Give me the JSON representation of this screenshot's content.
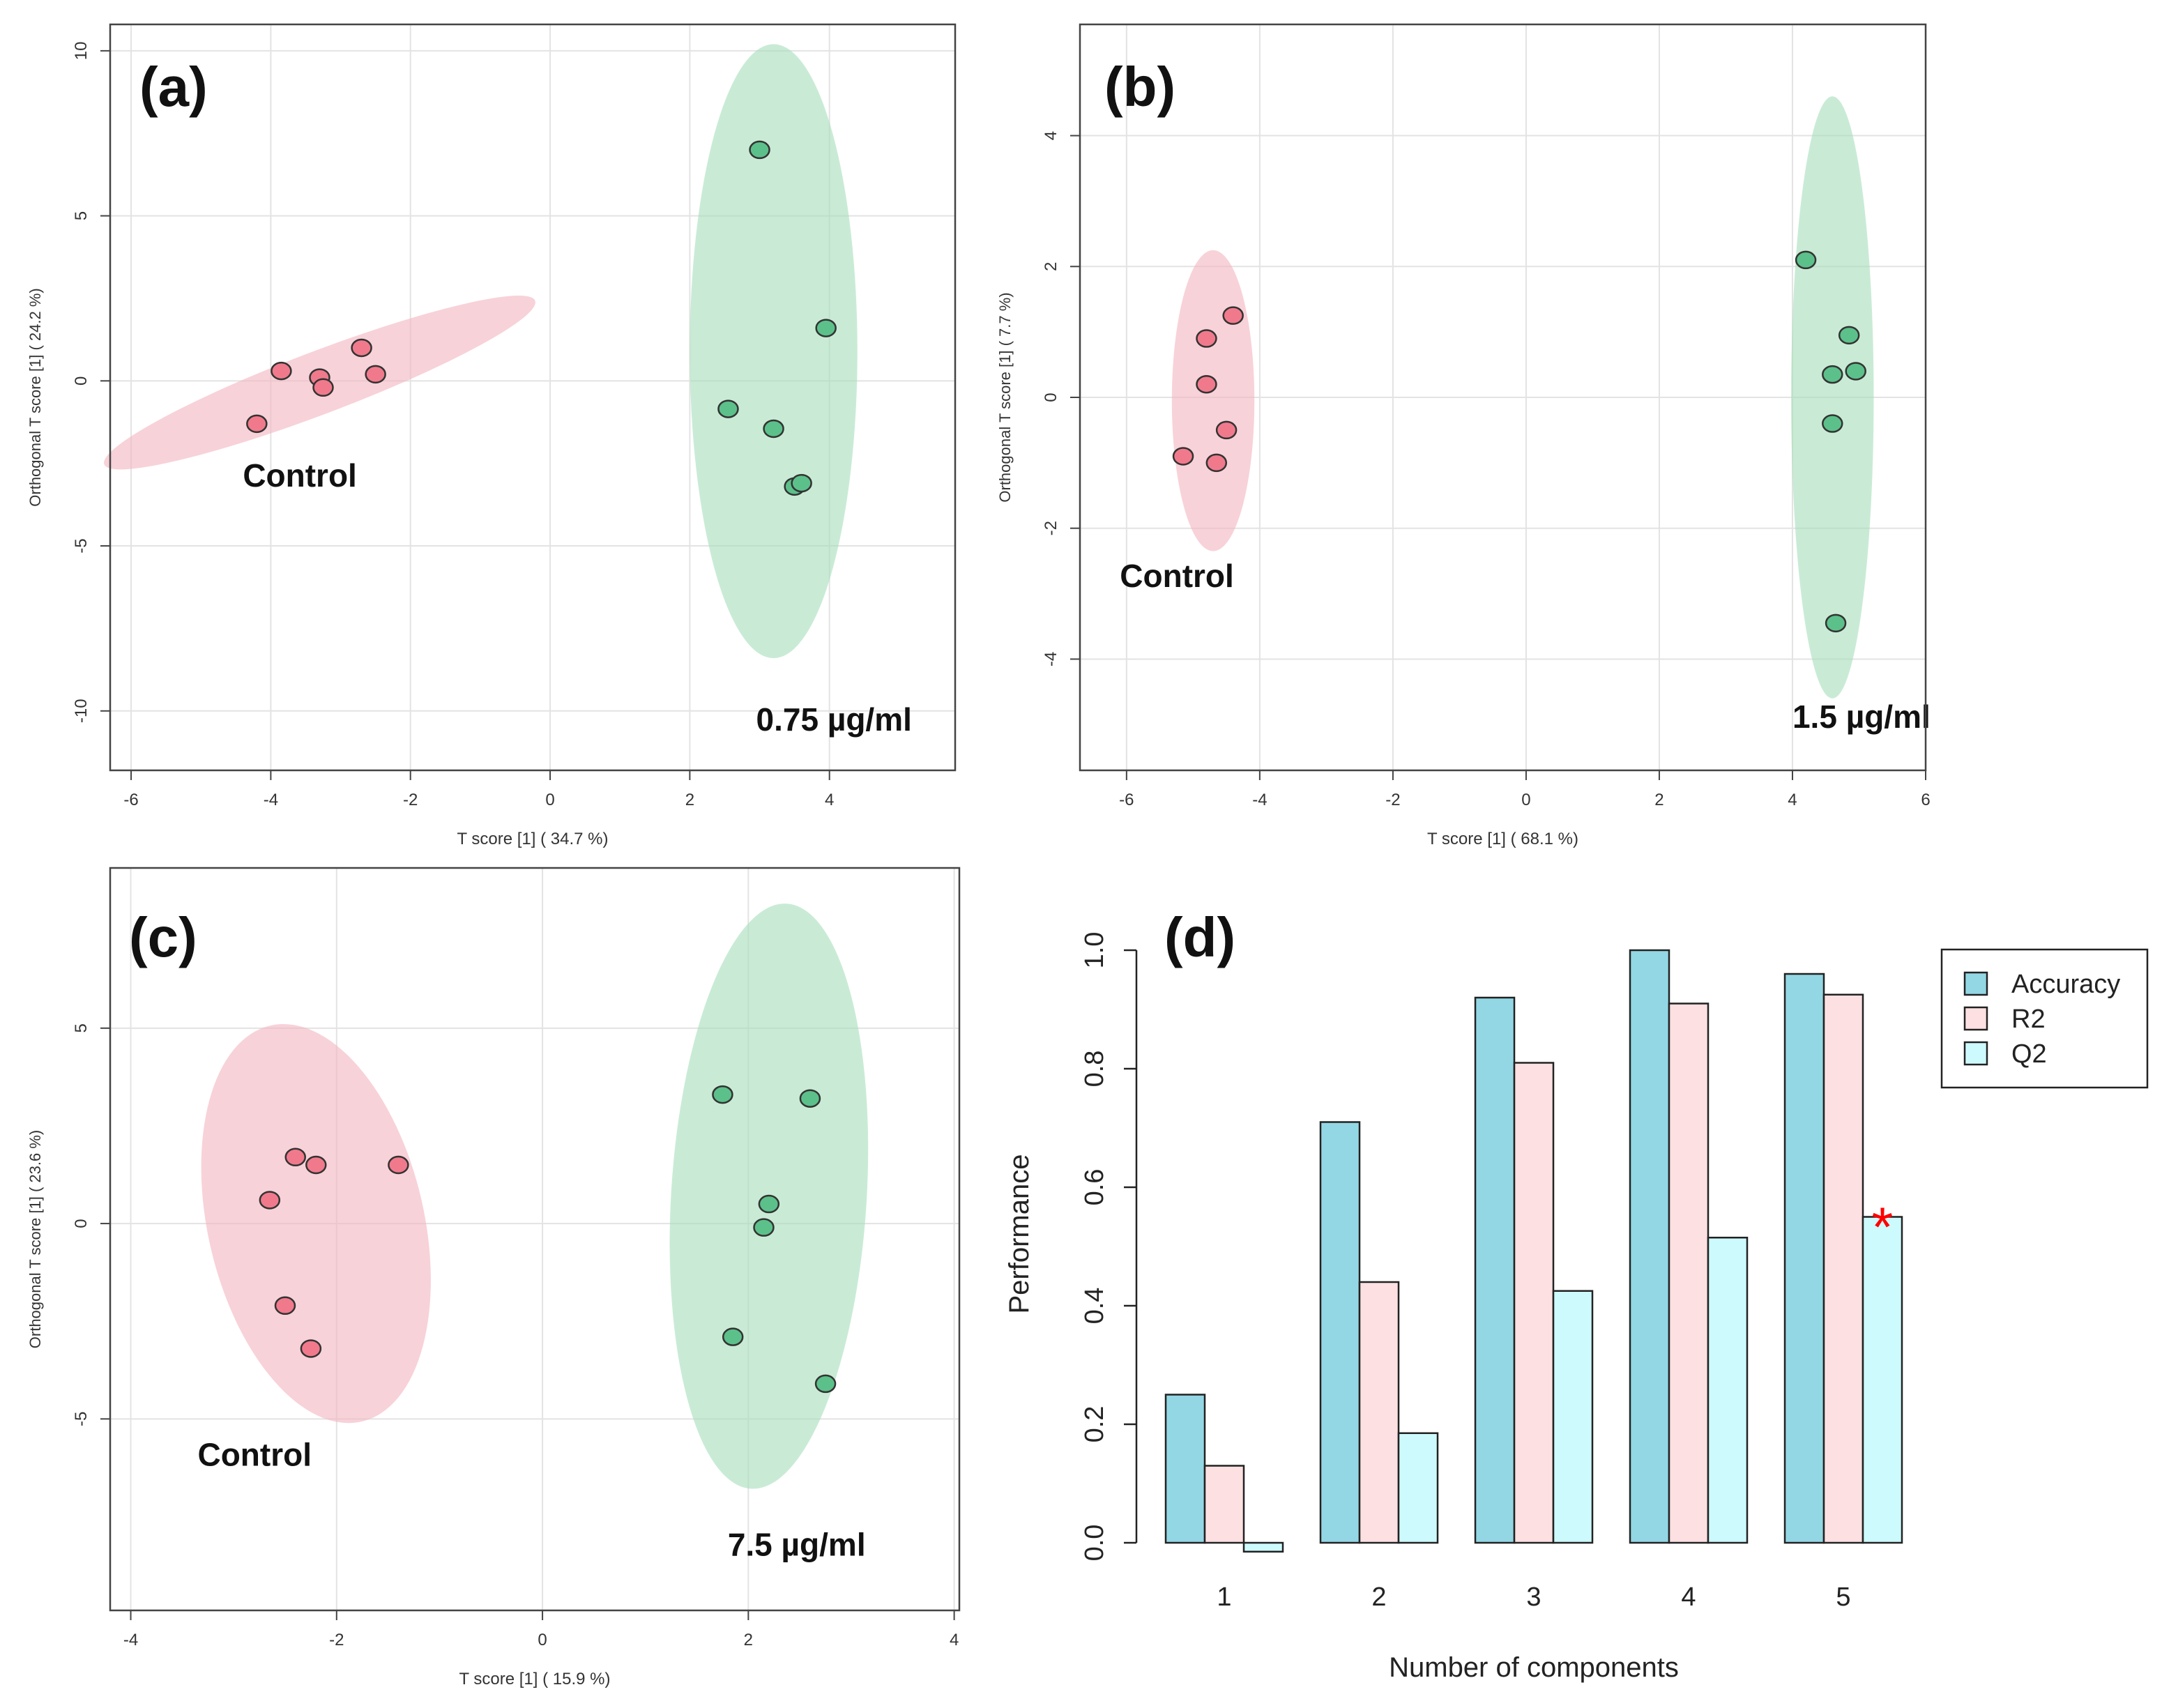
{
  "chart_data": [
    {
      "id": "a",
      "type": "scatter",
      "panel_label": "(a)",
      "xlabel": "T score [1] ( 34.7 %)",
      "ylabel": "Orthogonal T score [1] ( 24.2 %)",
      "xlim": [
        -6.3,
        5.8
      ],
      "ylim": [
        -11.8,
        10.8
      ],
      "xticks": [
        -6,
        -4,
        -2,
        0,
        2,
        4
      ],
      "yticks": [
        -10,
        -5,
        0,
        5,
        10
      ],
      "xtick_labels": [
        "-6",
        "-4",
        "-2",
        "0",
        "2",
        "4"
      ],
      "ytick_labels": [
        "-10",
        "-5",
        "0",
        "5",
        "10"
      ],
      "groups": [
        {
          "name": "Control",
          "color": "#f07a8c",
          "fill": "#f4b6c1",
          "points": [
            [
              -4.2,
              -1.3
            ],
            [
              -3.85,
              0.3
            ],
            [
              -3.3,
              0.1
            ],
            [
              -3.25,
              -0.2
            ],
            [
              -2.7,
              1.0
            ],
            [
              -2.5,
              0.2
            ]
          ],
          "ellipse": {
            "cx": -3.3,
            "cy": -0.05,
            "rx": 3.3,
            "ry": 0.95,
            "angle": 20.8
          },
          "label": "Control",
          "label_pos": [
            -4.4,
            -3.2
          ]
        },
        {
          "name": "0.75 µg/ml",
          "color": "#5cc08a",
          "fill": "#a8dfbc",
          "points": [
            [
              3.0,
              7.0
            ],
            [
              3.95,
              1.6
            ],
            [
              2.55,
              -0.85
            ],
            [
              3.2,
              -1.45
            ],
            [
              3.5,
              -3.2
            ],
            [
              3.6,
              -3.1
            ]
          ],
          "ellipse": {
            "cx": 3.2,
            "cy": 0.9,
            "rx": 1.2,
            "ry": 9.3,
            "angle": 0
          },
          "label": "0.75 µg/ml",
          "label_pos": [
            2.95,
            -10.6
          ]
        }
      ]
    },
    {
      "id": "b",
      "type": "scatter",
      "panel_label": "(b)",
      "xlabel": "T score [1] ( 68.1 %)",
      "ylabel": "Orthogonal T score [1] ( 7.7 %)",
      "xlim": [
        -6.7,
        6.0
      ],
      "ylim": [
        -5.7,
        5.7
      ],
      "xticks": [
        -6,
        -4,
        -2,
        0,
        2,
        4,
        6
      ],
      "yticks": [
        -4,
        -2,
        0,
        2,
        4
      ],
      "xtick_labels": [
        "-6",
        "-4",
        "-2",
        "0",
        "2",
        "4",
        "6"
      ],
      "ytick_labels": [
        "-4",
        "-2",
        "0",
        "2",
        "4"
      ],
      "groups": [
        {
          "name": "Control",
          "color": "#f07a8c",
          "fill": "#f4b6c1",
          "points": [
            [
              -4.4,
              1.25
            ],
            [
              -4.8,
              0.9
            ],
            [
              -4.8,
              0.2
            ],
            [
              -4.5,
              -0.5
            ],
            [
              -4.65,
              -1.0
            ],
            [
              -5.15,
              -0.9
            ]
          ],
          "ellipse": {
            "cx": -4.7,
            "cy": -0.05,
            "rx": 0.62,
            "ry": 2.3,
            "angle": 0
          },
          "label": "Control",
          "label_pos": [
            -6.1,
            -2.9
          ]
        },
        {
          "name": "1.5 µg/ml",
          "color": "#5cc08a",
          "fill": "#a8dfbc",
          "points": [
            [
              4.2,
              2.1
            ],
            [
              4.85,
              0.95
            ],
            [
              4.6,
              0.35
            ],
            [
              4.95,
              0.4
            ],
            [
              4.6,
              -0.4
            ],
            [
              4.65,
              -3.45
            ]
          ],
          "ellipse": {
            "cx": 4.6,
            "cy": 0.0,
            "rx": 0.62,
            "ry": 4.6,
            "angle": 0
          },
          "label": "1.5 µg/ml",
          "label_pos": [
            4.0,
            -5.05
          ]
        }
      ]
    },
    {
      "id": "c",
      "type": "scatter",
      "panel_label": "(c)",
      "xlabel": "T score [1] ( 15.9 %)",
      "ylabel": "Orthogonal T score [1] ( 23.6 %)",
      "xlim": [
        -4.2,
        4.05
      ],
      "ylim": [
        -9.9,
        9.1
      ],
      "xticks": [
        -4,
        -2,
        0,
        2,
        4
      ],
      "yticks": [
        -5,
        0,
        5
      ],
      "xtick_labels": [
        "-4",
        "-2",
        "0",
        "2",
        "4"
      ],
      "ytick_labels": [
        "-5",
        "0",
        "5"
      ],
      "groups": [
        {
          "name": "Control",
          "color": "#f07a8c",
          "fill": "#f4b6c1",
          "points": [
            [
              -2.4,
              1.7
            ],
            [
              -2.2,
              1.5
            ],
            [
              -1.4,
              1.5
            ],
            [
              -2.65,
              0.6
            ],
            [
              -2.5,
              -2.1
            ],
            [
              -2.25,
              -3.2
            ]
          ],
          "ellipse": {
            "cx": -2.2,
            "cy": -0.0,
            "rx": 1.05,
            "ry": 5.2,
            "angle": 13
          },
          "label": "Control",
          "label_pos": [
            -3.35,
            -6.2
          ]
        },
        {
          "name": "7.5 µg/ml",
          "color": "#5cc08a",
          "fill": "#a8dfbc",
          "points": [
            [
              1.75,
              3.3
            ],
            [
              2.6,
              3.2
            ],
            [
              2.2,
              0.5
            ],
            [
              2.15,
              -0.1
            ],
            [
              1.85,
              -2.9
            ],
            [
              2.75,
              -4.1
            ]
          ],
          "ellipse": {
            "cx": 2.2,
            "cy": 0.7,
            "rx": 0.95,
            "ry": 7.5,
            "angle": -3.5
          },
          "label": "7.5 µg/ml",
          "label_pos": [
            1.8,
            -8.5
          ]
        }
      ]
    },
    {
      "id": "d",
      "type": "bar",
      "panel_label": "(d)",
      "xlabel": "Number of components",
      "ylabel": "Performance",
      "categories": [
        "1",
        "2",
        "3",
        "4",
        "5"
      ],
      "ylim": [
        0.0,
        1.0
      ],
      "yticks": [
        0.0,
        0.2,
        0.4,
        0.6,
        0.8,
        1.0
      ],
      "ytick_labels": [
        "0.0",
        "0.2",
        "0.4",
        "0.6",
        "0.8",
        "1.0"
      ],
      "series": [
        {
          "name": "Accuracy",
          "color": "#93d7e5",
          "values": [
            0.25,
            0.71,
            0.92,
            1.0,
            0.96
          ]
        },
        {
          "name": "R2",
          "color": "#fde0e1",
          "values": [
            0.13,
            0.44,
            0.81,
            0.91,
            0.925
          ]
        },
        {
          "name": "Q2",
          "color": "#cdfafd",
          "values": [
            -0.015,
            0.185,
            0.425,
            0.515,
            0.55
          ]
        }
      ],
      "best_marker": {
        "symbol": "*",
        "series": "Q2",
        "category": "5",
        "color": "#ff0000"
      },
      "legend": {
        "position": "top-right",
        "entries": [
          "Accuracy",
          "R2",
          "Q2"
        ]
      }
    }
  ]
}
